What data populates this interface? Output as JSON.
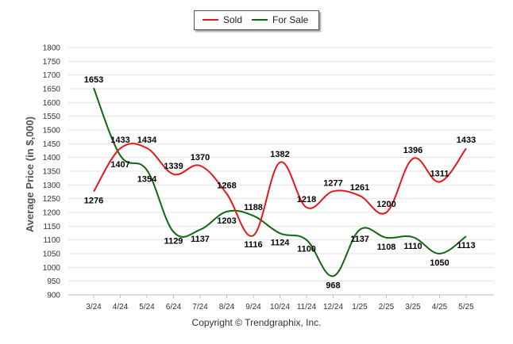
{
  "legend": {
    "items": [
      {
        "label": "Sold",
        "color": "#e8161c"
      },
      {
        "label": "For Sale",
        "color": "#0f6a0f"
      }
    ]
  },
  "footer": {
    "copyright": "Copyright © Trendgraphix, Inc."
  },
  "chart_data": {
    "type": "line",
    "categories": [
      "3/24",
      "4/24",
      "5/24",
      "6/24",
      "7/24",
      "8/24",
      "9/24",
      "10/24",
      "11/24",
      "12/24",
      "1/25",
      "2/25",
      "3/25",
      "4/25",
      "5/25"
    ],
    "ylabel": "Average Price (in $,000)",
    "ylim": [
      900,
      1800
    ],
    "yticks": [
      900,
      950,
      1000,
      1050,
      1100,
      1150,
      1200,
      1250,
      1300,
      1350,
      1400,
      1450,
      1500,
      1550,
      1600,
      1650,
      1700,
      1750,
      1800
    ],
    "grid": true,
    "legend_position": "top-center",
    "series": [
      {
        "name": "Sold",
        "color": "#e8161c",
        "values": [
          1276,
          1433,
          1434,
          1339,
          1370,
          1268,
          1116,
          1382,
          1218,
          1277,
          1261,
          1200,
          1396,
          1311,
          1433
        ]
      },
      {
        "name": "For Sale",
        "color": "#0f6a0f",
        "values": [
          1653,
          1407,
          1354,
          1129,
          1137,
          1203,
          1188,
          1124,
          1100,
          968,
          1137,
          1108,
          1110,
          1050,
          1113
        ]
      }
    ]
  }
}
